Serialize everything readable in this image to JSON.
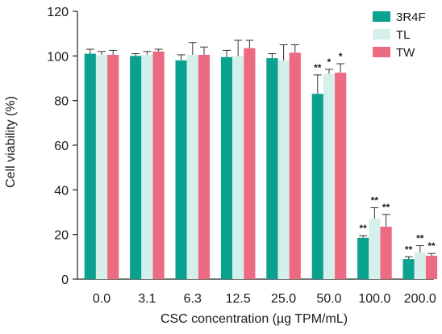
{
  "chart_data": {
    "type": "bar",
    "xlabel": "CSC concentration (µg TPM/mL)",
    "ylabel": "Cell viability (%)",
    "ylim": [
      0,
      120
    ],
    "yticks": [
      "0",
      "20",
      "40",
      "60",
      "80",
      "100",
      "120"
    ],
    "categories": [
      "0.0",
      "3.1",
      "6.3",
      "12.5",
      "25.0",
      "50.0",
      "100.0",
      "200.0"
    ],
    "legend_position": "top-right",
    "series": [
      {
        "name": "3R4F",
        "color": "#0aa28f",
        "values": [
          101,
          100,
          98,
          99.5,
          99,
          83,
          18.5,
          9
        ],
        "errors": [
          2,
          1,
          2.5,
          3,
          2,
          8.5,
          1,
          1
        ],
        "significance": [
          "",
          "",
          "",
          "",
          "",
          "**",
          "**",
          "**"
        ]
      },
      {
        "name": "TL",
        "color": "#d5efeb",
        "values": [
          100.5,
          100.5,
          100.5,
          100,
          98,
          92,
          27,
          12
        ],
        "errors": [
          1.5,
          1.5,
          5.5,
          7,
          7,
          2,
          5,
          3
        ],
        "significance": [
          "",
          "",
          "",
          "",
          "",
          "*",
          "**",
          "**"
        ]
      },
      {
        "name": "TW",
        "color": "#ec6b83",
        "values": [
          100.5,
          102,
          100.5,
          103.5,
          101.5,
          92.5,
          23.5,
          10.5
        ],
        "errors": [
          2,
          1,
          3.5,
          3.5,
          3.5,
          4,
          5.5,
          1
        ],
        "significance": [
          "",
          "",
          "",
          "",
          "",
          "*",
          "**",
          "**"
        ]
      }
    ]
  }
}
